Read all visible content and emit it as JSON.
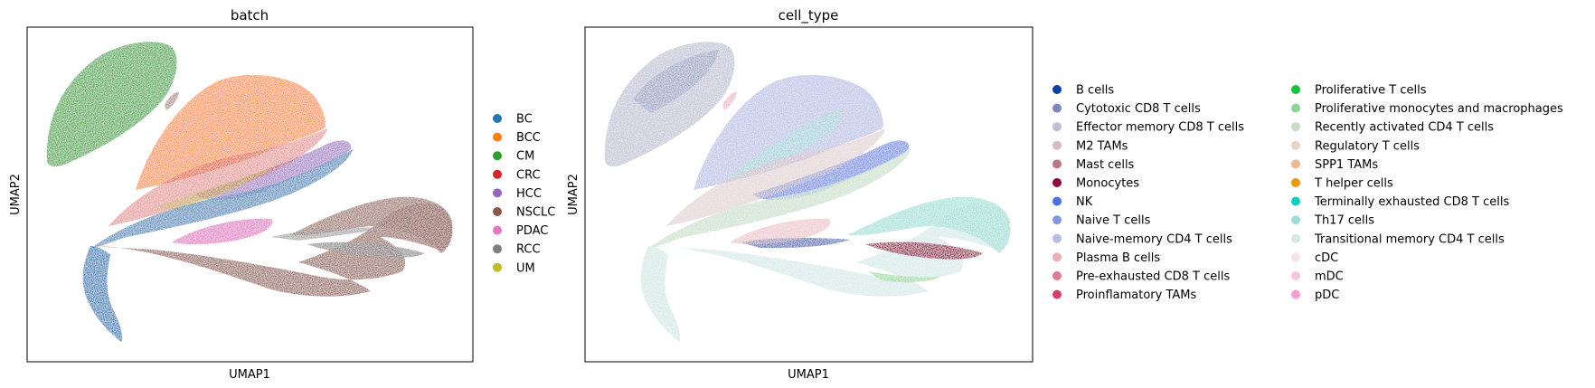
{
  "chart_data": [
    {
      "type": "scatter",
      "title": "batch",
      "xlabel": "UMAP1",
      "ylabel": "UMAP2",
      "ticks": "none",
      "grid": false,
      "legend_position": "right",
      "legend": [
        {
          "label": "BC",
          "color": "#1f77b4"
        },
        {
          "label": "BCC",
          "color": "#ff7f0e"
        },
        {
          "label": "CM",
          "color": "#2ca02c"
        },
        {
          "label": "CRC",
          "color": "#d62728"
        },
        {
          "label": "HCC",
          "color": "#9467bd"
        },
        {
          "label": "NSCLC",
          "color": "#8c564b"
        },
        {
          "label": "PDAC",
          "color": "#e377c2"
        },
        {
          "label": "RCC",
          "color": "#7f7f7f"
        },
        {
          "label": "UM",
          "color": "#bcbd22"
        }
      ]
    },
    {
      "type": "scatter",
      "title": "cell_type",
      "xlabel": "UMAP1",
      "ylabel": "UMAP2",
      "ticks": "none",
      "grid": false,
      "legend_position": "right",
      "legend": [
        {
          "label": "B cells",
          "color": "#023fa5"
        },
        {
          "label": "Cytotoxic CD8 T cells",
          "color": "#7d87b9"
        },
        {
          "label": "Effector memory CD8 T cells",
          "color": "#bec1d4"
        },
        {
          "label": "M2 TAMs",
          "color": "#d6bcc0"
        },
        {
          "label": "Mast cells",
          "color": "#bb7784"
        },
        {
          "label": "Monocytes",
          "color": "#8e063b"
        },
        {
          "label": "NK",
          "color": "#4a6fe3"
        },
        {
          "label": "Naive T cells",
          "color": "#8595e1"
        },
        {
          "label": "Naive-memory CD4 T cells",
          "color": "#b5bbe3"
        },
        {
          "label": "Plasma B cells",
          "color": "#e6afb9"
        },
        {
          "label": "Pre-exhausted CD8 T cells",
          "color": "#e07b91"
        },
        {
          "label": "Proinflamatory TAMs",
          "color": "#d33f6a"
        },
        {
          "label": "Proliferative T cells",
          "color": "#11c638"
        },
        {
          "label": "Proliferative monocytes and macrophages",
          "color": "#8dd593"
        },
        {
          "label": "Recently activated CD4 T cells",
          "color": "#c6dec7"
        },
        {
          "label": "Regulatory T cells",
          "color": "#ead3c6"
        },
        {
          "label": "SPP1 TAMs",
          "color": "#f0b98d"
        },
        {
          "label": "T helper cells",
          "color": "#ef9708"
        },
        {
          "label": "Terminally exhausted CD8 T cells",
          "color": "#0fcfc0"
        },
        {
          "label": "Th17 cells",
          "color": "#9cded6"
        },
        {
          "label": "Transitional memory CD4 T cells",
          "color": "#d5eae7"
        },
        {
          "label": "cDC",
          "color": "#f3e1eb"
        },
        {
          "label": "mDC",
          "color": "#f6c4e1"
        },
        {
          "label": "pDC",
          "color": "#f79cd4"
        }
      ]
    }
  ]
}
